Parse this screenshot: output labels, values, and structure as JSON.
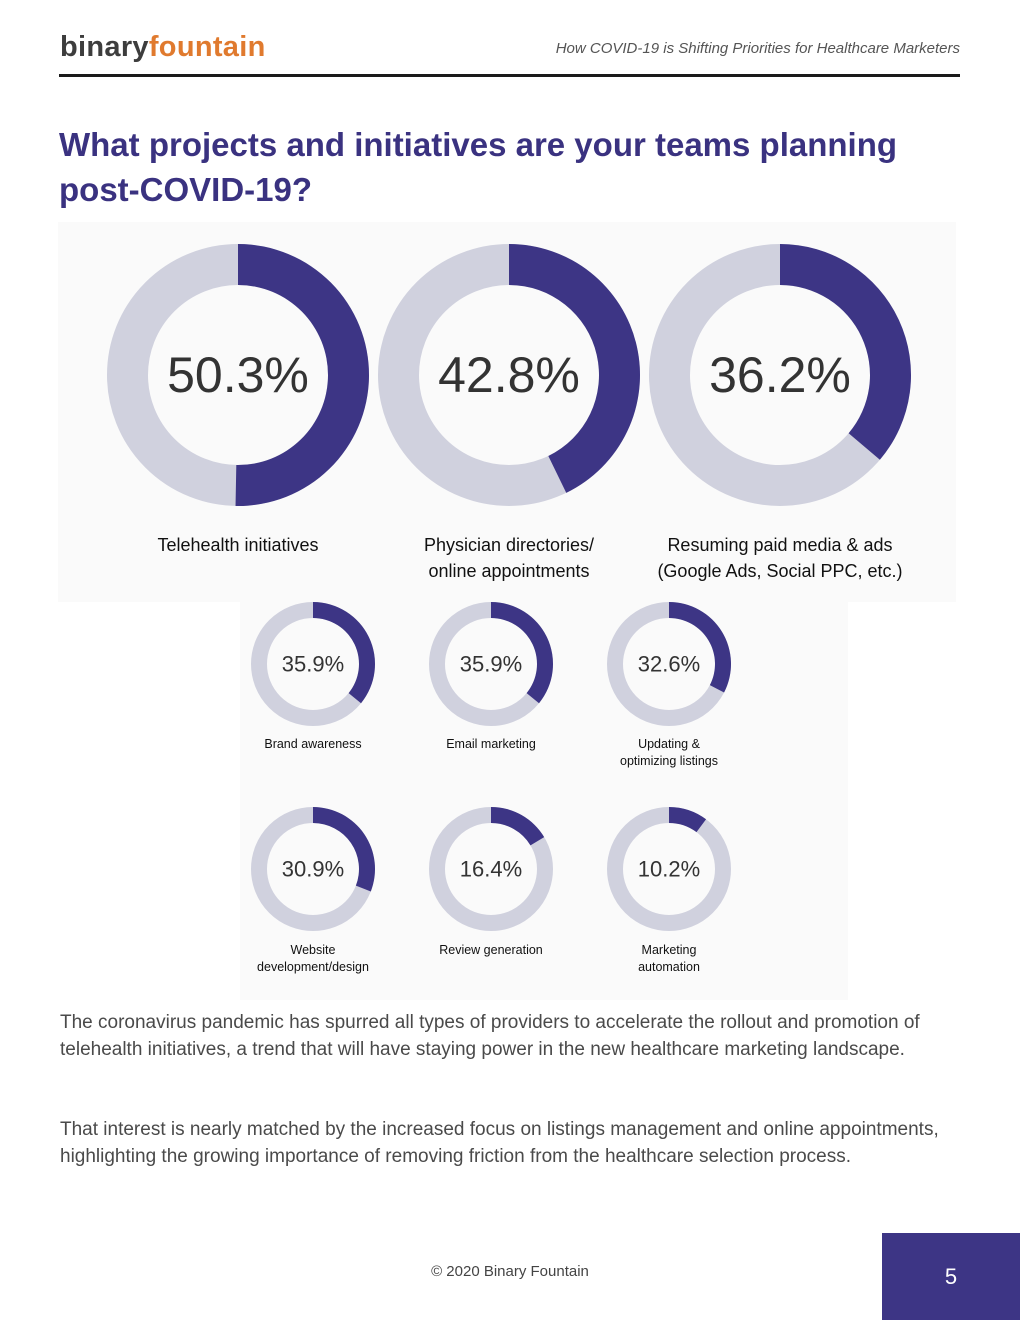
{
  "header": {
    "logo_part1": "binary",
    "logo_part2": "fountain",
    "running_title": "How COVID-19 is Shifting Priorities for Healthcare Marketers"
  },
  "heading_line1": "What projects and initiatives are your teams planning",
  "heading_line2": "post-COVID-19?",
  "colors": {
    "accent": "#3d3585",
    "track": "#d0d1de",
    "heading": "#3a3280"
  },
  "chart_data": {
    "type": "donut",
    "unit": "%",
    "items": [
      {
        "label_lines": [
          "Telehealth initiatives"
        ],
        "value": 50.3,
        "display": "50.3%"
      },
      {
        "label_lines": [
          "Physician directories/",
          "online appointments"
        ],
        "value": 42.8,
        "display": "42.8%"
      },
      {
        "label_lines": [
          "Resuming paid media & ads",
          "(Google Ads, Social PPC, etc.)"
        ],
        "value": 36.2,
        "display": "36.2%"
      },
      {
        "label_lines": [
          "Brand awareness"
        ],
        "value": 35.9,
        "display": "35.9%"
      },
      {
        "label_lines": [
          "Email marketing"
        ],
        "value": 35.9,
        "display": "35.9%"
      },
      {
        "label_lines": [
          "Updating &",
          "optimizing listings"
        ],
        "value": 32.6,
        "display": "32.6%"
      },
      {
        "label_lines": [
          "Website",
          "development/design"
        ],
        "value": 30.9,
        "display": "30.9%"
      },
      {
        "label_lines": [
          "Review generation"
        ],
        "value": 16.4,
        "display": "16.4%"
      },
      {
        "label_lines": [
          "Marketing",
          "automation"
        ],
        "value": 10.2,
        "display": "10.2%"
      }
    ]
  },
  "paragraphs": [
    "The coronavirus pandemic has spurred all types of providers to accelerate the rollout and promotion of telehealth initiatives, a trend that will have staying power in the new healthcare marketing landscape.",
    "That interest is nearly matched by the increased focus on listings management and online appointments, highlighting the growing importance of removing friction from the healthcare selection process."
  ],
  "footer": {
    "copyright": "© 2020 Binary Fountain",
    "page_number": "5"
  }
}
